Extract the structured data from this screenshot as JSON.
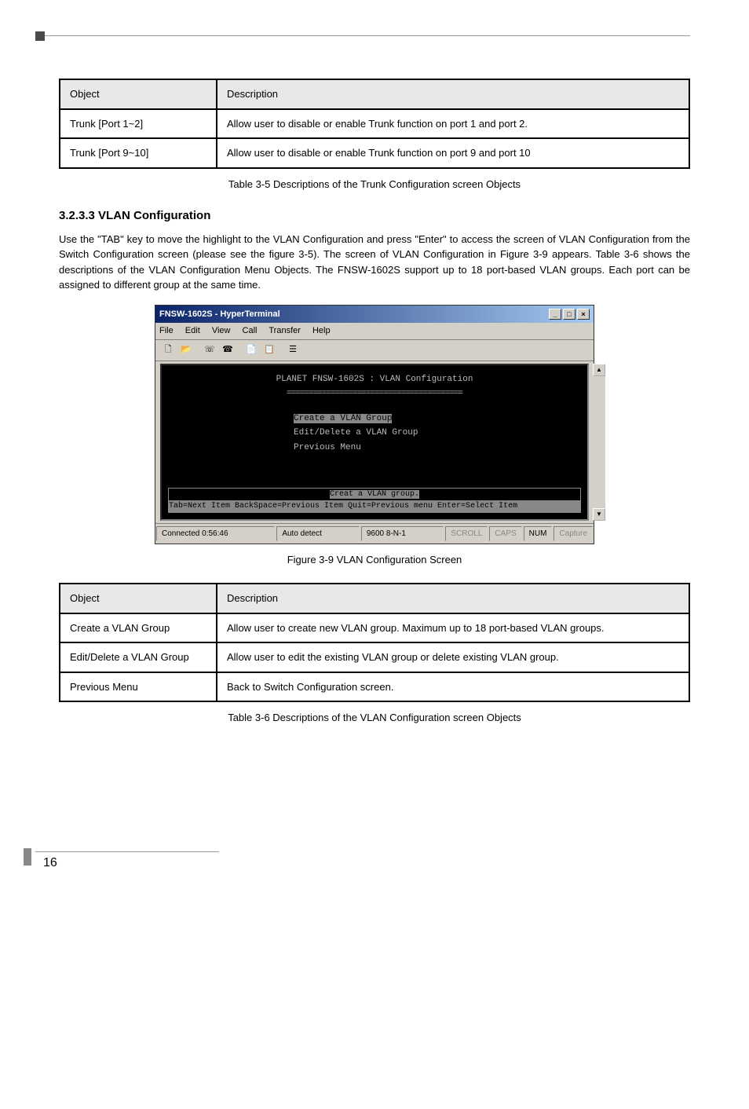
{
  "table1": {
    "headers": [
      "Object",
      "Description"
    ],
    "rows": [
      [
        "Trunk [Port 1~2]",
        "Allow user to disable or enable Trunk function on port 1 and port 2."
      ],
      [
        "Trunk [Port 9~10]",
        "Allow user to disable or enable Trunk function on port 9 and port 10"
      ]
    ],
    "caption": "Table 3-5 Descriptions of the Trunk Configuration screen Objects"
  },
  "section": {
    "heading": "3.2.3.3 VLAN Configuration",
    "body": "Use the \"TAB\" key to move the highlight to the VLAN Configuration and press \"Enter\" to access the screen of VLAN Configuration from the Switch Configuration screen (please see the figure 3-5). The screen of VLAN Configuration in Figure 3-9 appears. Table 3-6 shows the descriptions of the VLAN Configuration Menu Objects. The FNSW-1602S support up to 18 port-based VLAN groups. Each port can be assigned to different group at the same time."
  },
  "hyperterm": {
    "title": "FNSW-1602S - HyperTerminal",
    "menus": [
      "File",
      "Edit",
      "View",
      "Call",
      "Transfer",
      "Help"
    ],
    "terminal_title": "PLANET FNSW-1602S : VLAN Configuration",
    "terminal_underline": "========================================",
    "menu_items": {
      "create": "Create a VLAN Group",
      "edit": "Edit/Delete a VLAN Group",
      "prev": "Previous Menu"
    },
    "help_line1": "Creat a VLAN group.",
    "help_line2": "Tab=Next Item  BackSpace=Previous Item  Quit=Previous menu Enter=Select Item",
    "status": {
      "connected": "Connected 0:56:46",
      "detect": "Auto detect",
      "baud": "9600 8-N-1",
      "scroll": "SCROLL",
      "caps": "CAPS",
      "num": "NUM",
      "capture": "Capture"
    }
  },
  "figure_caption": "Figure 3-9 VLAN Configuration Screen",
  "table2": {
    "headers": [
      "Object",
      "Description"
    ],
    "rows": [
      [
        "Create a VLAN Group",
        "Allow user to create new VLAN group. Maximum up to 18 port-based VLAN groups."
      ],
      [
        "Edit/Delete a VLAN Group",
        "Allow user to edit the existing VLAN group or delete existing VLAN group."
      ],
      [
        "Previous Menu",
        "Back to Switch Configuration screen."
      ]
    ],
    "caption": "Table 3-6 Descriptions of the VLAN Configuration screen Objects"
  },
  "page_number": "16"
}
